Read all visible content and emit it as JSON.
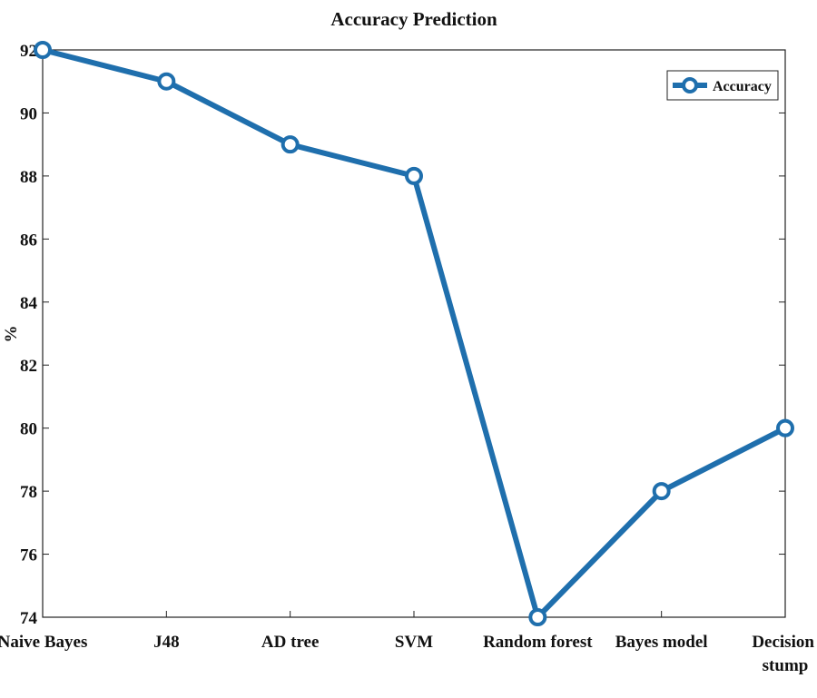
{
  "chart_data": {
    "type": "line",
    "title": "Accuracy Prediction",
    "y_label": "%",
    "categories": [
      "Naive Bayes",
      "J48",
      "AD tree",
      "SVM",
      "Random forest",
      "Bayes model",
      "Decision stump"
    ],
    "series": [
      {
        "name": "Accuracy",
        "color": "#1f6fad",
        "values": [
          92,
          91,
          89,
          88,
          74,
          78,
          80
        ]
      }
    ],
    "ylim": [
      74,
      92
    ],
    "yticks": [
      74,
      76,
      78,
      80,
      82,
      84,
      86,
      88,
      90,
      92
    ],
    "grid": false,
    "legend": "upper right"
  }
}
